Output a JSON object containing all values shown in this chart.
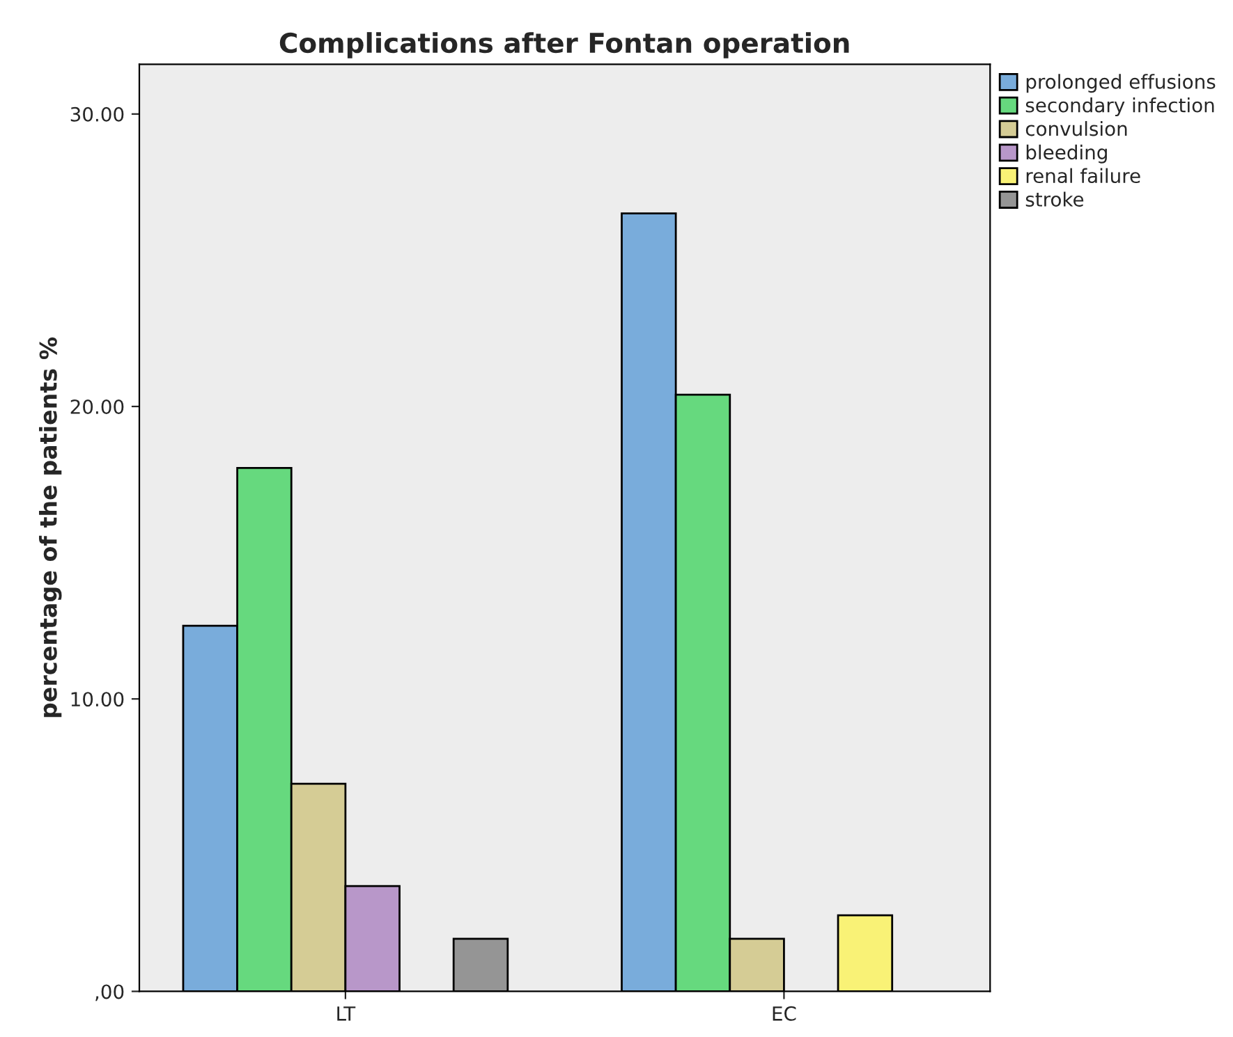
{
  "chart_data": {
    "type": "bar",
    "title": "Complications after Fontan operation",
    "ylabel": "percentage of the patients %",
    "categories": [
      "LT",
      "EC"
    ],
    "series": [
      {
        "name": "prolonged effusions",
        "color": "#79acdb",
        "values": [
          12.5,
          26.6
        ]
      },
      {
        "name": "secondary infection",
        "color": "#66d97e",
        "values": [
          17.9,
          20.4
        ]
      },
      {
        "name": "convulsion",
        "color": "#d5cc95",
        "values": [
          7.1,
          1.8
        ]
      },
      {
        "name": "bleeding",
        "color": "#b897c9",
        "values": [
          3.6,
          null
        ]
      },
      {
        "name": "renal failure",
        "color": "#f9f276",
        "values": [
          null,
          2.6
        ]
      },
      {
        "name": "stroke",
        "color": "#959595",
        "values": [
          1.8,
          null
        ]
      }
    ],
    "ylim": [
      0,
      31.7
    ],
    "yticks": [
      {
        "value": 0,
        "label": ",00"
      },
      {
        "value": 10,
        "label": "10.00"
      },
      {
        "value": 20,
        "label": "20.00"
      },
      {
        "value": 30,
        "label": "30.00"
      }
    ],
    "grid": false,
    "legend": "top right"
  }
}
